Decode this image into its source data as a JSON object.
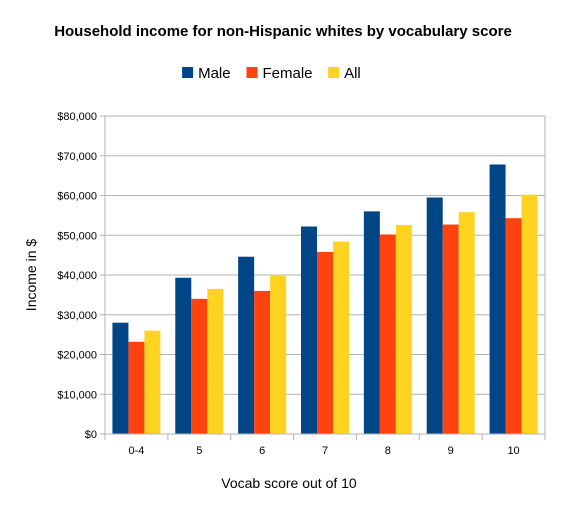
{
  "chart_data": {
    "type": "bar",
    "title": "Household income for non-Hispanic whites by vocabulary score",
    "xlabel": "Vocab score out of 10",
    "ylabel": "Income in $",
    "categories": [
      "0-4",
      "5",
      "6",
      "7",
      "8",
      "9",
      "10"
    ],
    "series": [
      {
        "name": "Male",
        "color": "#004586",
        "values": [
          28000,
          39300,
          44600,
          52200,
          56000,
          59500,
          67800
        ]
      },
      {
        "name": "Female",
        "color": "#ff420e",
        "values": [
          23200,
          34000,
          36000,
          45800,
          50200,
          52700,
          54300
        ]
      },
      {
        "name": "All",
        "color": "#ffd320",
        "values": [
          26000,
          36500,
          40000,
          48400,
          52600,
          55800,
          60200
        ]
      }
    ],
    "ylim": [
      0,
      80000
    ],
    "yticks": [
      0,
      10000,
      20000,
      30000,
      40000,
      50000,
      60000,
      70000,
      80000
    ],
    "ytick_labels": [
      "$0",
      "$10,000",
      "$20,000",
      "$30,000",
      "$40,000",
      "$50,000",
      "$60,000",
      "$70,000",
      "$80,000"
    ],
    "grid": true,
    "legend_position": "top-center"
  }
}
